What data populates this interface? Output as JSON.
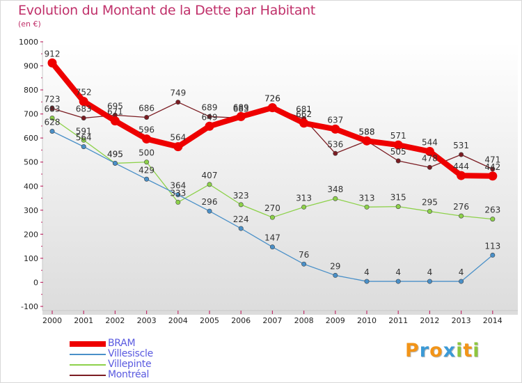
{
  "title": "Evolution du Montant de la Dette par Habitant",
  "unit_label": "(en €)",
  "logo": {
    "letters": [
      "P",
      "r",
      "o",
      "x",
      "i",
      "t",
      "i"
    ],
    "colors": [
      "#f29418",
      "#3b9ad6",
      "#f29418",
      "#3b9ad6",
      "#8ec63f",
      "#f29418",
      "#8ec63f"
    ]
  },
  "chart_data": {
    "type": "line",
    "x": [
      "2000",
      "2001",
      "2002",
      "2003",
      "2004",
      "2005",
      "2006",
      "2007",
      "2008",
      "2009",
      "2010",
      "2011",
      "2012",
      "2013",
      "2014"
    ],
    "ylim": [
      -100,
      1000
    ],
    "yticks": [
      "-100",
      "0",
      "100",
      "200",
      "300",
      "400",
      "500",
      "600",
      "700",
      "800",
      "900",
      "1000"
    ],
    "grid": false,
    "legend_position": "bottom-left",
    "series": [
      {
        "name": "Montréal",
        "color": "#7b1c22",
        "values": [
          723,
          683,
          695,
          686,
          749,
          689,
          683,
          726,
          681,
          536,
          588,
          505,
          478,
          531,
          471
        ],
        "labels": [
          "723",
          "683",
          "695",
          "686",
          "749",
          "689",
          "683",
          "726",
          "681",
          "536",
          "588",
          "505",
          "478",
          "531",
          "471"
        ]
      },
      {
        "name": "Villepinte",
        "color": "#8dd14a",
        "values": [
          683,
          591,
          495,
          500,
          333,
          407,
          323,
          270,
          313,
          348,
          313,
          315,
          295,
          276,
          263
        ],
        "labels": [
          "683",
          "591",
          "495",
          "500",
          "333",
          "407",
          "323",
          "270",
          "313",
          "348",
          "313",
          "315",
          "295",
          "276",
          "263"
        ]
      },
      {
        "name": "Villesiscle",
        "color": "#4a90c8",
        "values": [
          628,
          564,
          495,
          429,
          364,
          296,
          224,
          147,
          76,
          29,
          4,
          4,
          4,
          4,
          113
        ],
        "labels": [
          "628",
          "564",
          "495",
          "429",
          "364",
          "296",
          "224",
          "147",
          "76",
          "29",
          "4",
          "4",
          "4",
          "4",
          "113"
        ]
      },
      {
        "name": "BRAM",
        "color": "#ee0000",
        "values": [
          912,
          752,
          671,
          596,
          564,
          649,
          689,
          726,
          662,
          637,
          588,
          571,
          544,
          444,
          442
        ],
        "labels": [
          "912",
          "752",
          "671",
          "596",
          "564",
          "649",
          "689",
          "726",
          "662",
          "637",
          "588",
          "571",
          "544",
          "444",
          "442"
        ]
      }
    ],
    "legend_order": [
      "BRAM",
      "Villesiscle",
      "Villepinte",
      "Montréal"
    ]
  }
}
